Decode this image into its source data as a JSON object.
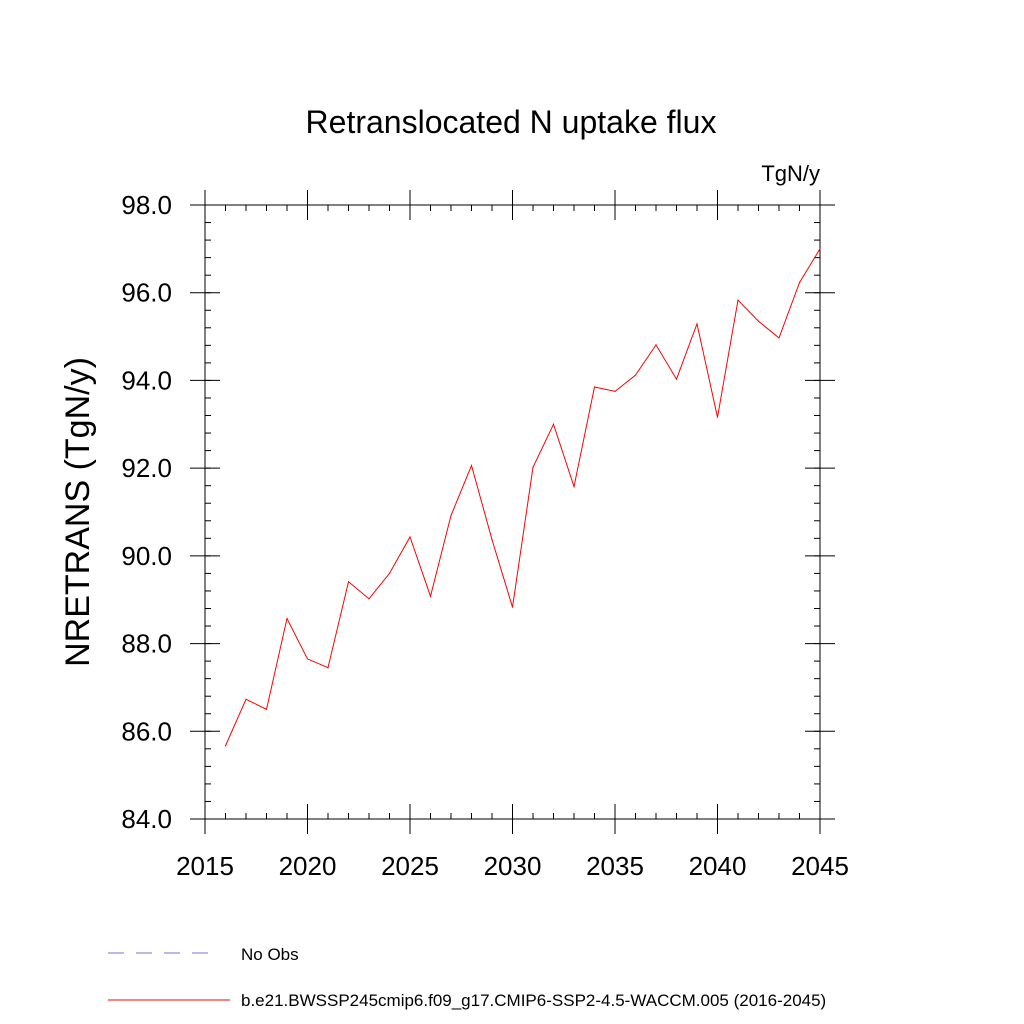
{
  "chart_data": {
    "type": "line",
    "title": "Retranslocated N uptake flux",
    "units": "TgN/y",
    "ylabel": "NRETRANS  (TgN/y)",
    "xlabel": "",
    "xlim": [
      2015,
      2045
    ],
    "ylim": [
      84.0,
      98.0
    ],
    "x_ticks": [
      "2015",
      "2020",
      "2025",
      "2030",
      "2035",
      "2040",
      "2045"
    ],
    "y_ticks": [
      "84.0",
      "86.0",
      "88.0",
      "90.0",
      "92.0",
      "94.0",
      "96.0",
      "98.0"
    ],
    "grid": false,
    "series": [
      {
        "name": "b.e21.BWSSP245cmip6.f09_g17.CMIP6-SSP2-4.5-WACCM.005 (2016-2045)",
        "color": "#ff0000",
        "x": [
          2016,
          2017,
          2018,
          2019,
          2020,
          2021,
          2022,
          2023,
          2024,
          2025,
          2026,
          2027,
          2028,
          2029,
          2030,
          2031,
          2032,
          2033,
          2034,
          2035,
          2036,
          2037,
          2038,
          2039,
          2040,
          2041,
          2042,
          2043,
          2044,
          2045
        ],
        "y": [
          85.67,
          86.73,
          86.5,
          88.57,
          87.65,
          87.45,
          89.41,
          89.02,
          89.6,
          90.43,
          89.08,
          90.92,
          92.06,
          90.37,
          88.83,
          92.02,
          93.0,
          91.58,
          93.85,
          93.75,
          94.12,
          94.81,
          94.03,
          95.29,
          93.16,
          95.83,
          95.35,
          94.97,
          96.23,
          97.0
        ]
      }
    ],
    "legend": {
      "placement": "bottom-left",
      "entries": [
        {
          "label": "No Obs",
          "color": "#7b6fd6",
          "style": "dashed"
        },
        {
          "label": "b.e21.BWSSP245cmip6.f09_g17.CMIP6-SSP2-4.5-WACCM.005 (2016-2045)",
          "color": "#ff0000",
          "style": "solid"
        }
      ]
    }
  }
}
